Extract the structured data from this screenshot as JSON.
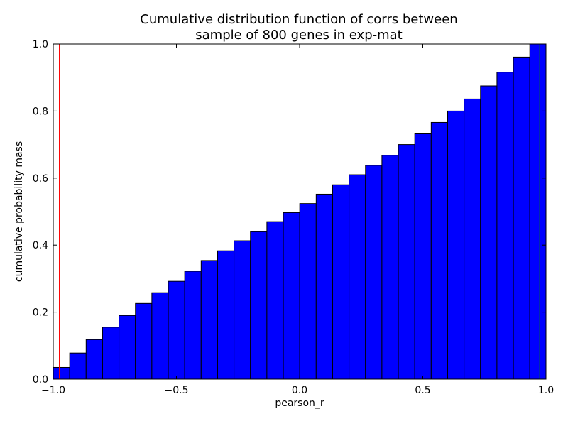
{
  "chart_data": {
    "type": "bar",
    "title_lines": [
      "Cumulative distribution function of corrs between",
      "sample of 800 genes in exp-mat"
    ],
    "xlabel": "pearson_r",
    "ylabel": "cumulative probability mass",
    "xlim": [
      -1.0,
      1.0
    ],
    "ylim": [
      0.0,
      1.0
    ],
    "xticks": [
      -1.0,
      -0.5,
      0.0,
      0.5,
      1.0
    ],
    "xtick_labels": [
      "−1.0",
      "−0.5",
      "0.0",
      "0.5",
      "1.0"
    ],
    "yticks": [
      0.0,
      0.2,
      0.4,
      0.6,
      0.8,
      1.0
    ],
    "ytick_labels": [
      "0.0",
      "0.2",
      "0.4",
      "0.6",
      "0.8",
      "1.0"
    ],
    "grid": false,
    "bin_start": -1.0,
    "bin_width": 0.0667,
    "values": [
      0.035,
      0.078,
      0.118,
      0.155,
      0.19,
      0.226,
      0.258,
      0.292,
      0.322,
      0.354,
      0.383,
      0.413,
      0.44,
      0.47,
      0.497,
      0.524,
      0.552,
      0.58,
      0.61,
      0.638,
      0.668,
      0.7,
      0.732,
      0.766,
      0.8,
      0.836,
      0.875,
      0.916,
      0.961,
      1.0
    ],
    "bar_color": "#0000ff",
    "bar_edge_color": "#000000",
    "vlines": [
      {
        "x": -0.975,
        "color": "#ff0000"
      },
      {
        "x": 0.975,
        "color": "#008000"
      }
    ]
  }
}
